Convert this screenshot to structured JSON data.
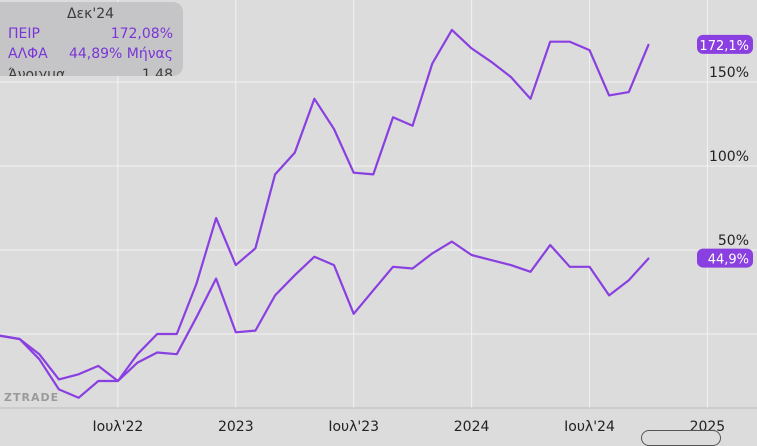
{
  "chart_data": {
    "type": "line",
    "series": [
      {
        "name": "ΠΕΙΡ",
        "color": "#8a3fe0",
        "end_label": "172,1%",
        "points": [
          [
            "2022-01",
            -1
          ],
          [
            "2022-02",
            -3
          ],
          [
            "2022-03",
            -12
          ],
          [
            "2022-04",
            -27
          ],
          [
            "2022-05",
            -24
          ],
          [
            "2022-06",
            -19
          ],
          [
            "2022-07",
            -28
          ],
          [
            "2022-08",
            -12
          ],
          [
            "2022-09",
            0
          ],
          [
            "2022-10",
            0
          ],
          [
            "2022-11",
            30
          ],
          [
            "2022-12",
            69
          ],
          [
            "2023-01",
            41
          ],
          [
            "2023-02",
            51
          ],
          [
            "2023-03",
            95
          ],
          [
            "2023-04",
            108
          ],
          [
            "2023-05",
            140
          ],
          [
            "2023-06",
            122
          ],
          [
            "2023-07",
            96
          ],
          [
            "2023-08",
            95
          ],
          [
            "2023-09",
            129
          ],
          [
            "2023-10",
            124
          ],
          [
            "2023-11",
            161
          ],
          [
            "2023-12",
            181
          ],
          [
            "2024-01",
            170
          ],
          [
            "2024-02",
            162
          ],
          [
            "2024-03",
            153
          ],
          [
            "2024-04",
            140
          ],
          [
            "2024-05",
            174
          ],
          [
            "2024-06",
            174
          ],
          [
            "2024-07",
            169
          ],
          [
            "2024-08",
            142
          ],
          [
            "2024-09",
            144
          ],
          [
            "2024-10",
            172.1
          ]
        ]
      },
      {
        "name": "ΑΛΦΑ",
        "color": "#8a3fe0",
        "end_label": "44,9%",
        "points": [
          [
            "2022-01",
            -1
          ],
          [
            "2022-02",
            -3
          ],
          [
            "2022-03",
            -15
          ],
          [
            "2022-04",
            -33
          ],
          [
            "2022-05",
            -38
          ],
          [
            "2022-06",
            -28
          ],
          [
            "2022-07",
            -28
          ],
          [
            "2022-08",
            -17
          ],
          [
            "2022-09",
            -11
          ],
          [
            "2022-10",
            -12
          ],
          [
            "2022-11",
            10
          ],
          [
            "2022-12",
            33
          ],
          [
            "2023-01",
            1
          ],
          [
            "2023-02",
            2
          ],
          [
            "2023-03",
            23
          ],
          [
            "2023-04",
            35
          ],
          [
            "2023-05",
            46
          ],
          [
            "2023-06",
            41
          ],
          [
            "2023-07",
            12
          ],
          [
            "2023-08",
            26
          ],
          [
            "2023-09",
            40
          ],
          [
            "2023-10",
            39
          ],
          [
            "2023-11",
            48
          ],
          [
            "2023-12",
            55
          ],
          [
            "2024-01",
            47
          ],
          [
            "2024-02",
            44
          ],
          [
            "2024-03",
            41
          ],
          [
            "2024-04",
            37
          ],
          [
            "2024-05",
            53
          ],
          [
            "2024-06",
            40
          ],
          [
            "2024-07",
            40
          ],
          [
            "2024-08",
            23
          ],
          [
            "2024-09",
            32
          ],
          [
            "2024-10",
            44.9
          ]
        ]
      }
    ],
    "x_ticks": [
      {
        "x": "2022-07",
        "label": "Ιουλ'22"
      },
      {
        "x": "2023-01",
        "label": "2023"
      },
      {
        "x": "2023-07",
        "label": "Ιουλ'23"
      },
      {
        "x": "2024-01",
        "label": "2024"
      },
      {
        "x": "2024-07",
        "label": "Ιουλ'24"
      },
      {
        "x": "2025-01",
        "label": "2025"
      }
    ],
    "y_ticks": [
      {
        "y": 0,
        "label": ""
      },
      {
        "y": 50,
        "label": "50%"
      },
      {
        "y": 100,
        "label": "100%"
      },
      {
        "y": 150,
        "label": "150%"
      }
    ],
    "xlim": [
      "2022-01",
      "2025-03"
    ],
    "ylim": [
      -45,
      198
    ],
    "grid": true,
    "gridline_color": "#f2f2f2",
    "axis_text_color": "#222222"
  },
  "tooltip": {
    "title": "Δεκ'24",
    "rows": [
      {
        "name": "ΠΕΙΡ",
        "value": "172,08%"
      },
      {
        "name": "ΑΛΦΑ",
        "value": "44,89% Μήνας"
      },
      {
        "name": "Άνοιγμα",
        "value": "1,48"
      }
    ]
  },
  "watermark": "ZTRADE"
}
